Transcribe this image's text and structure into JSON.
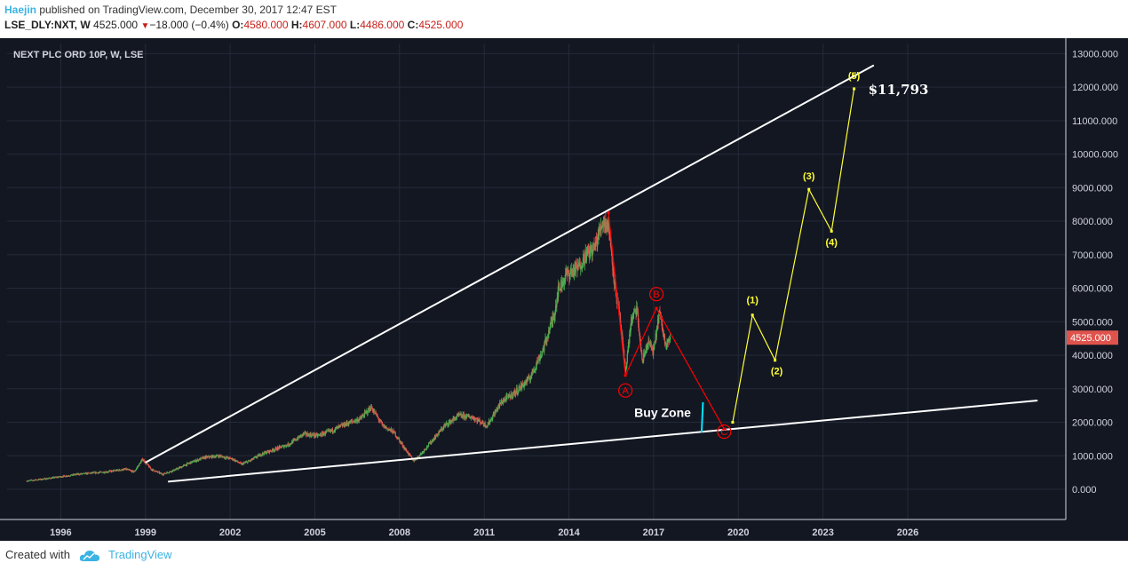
{
  "header": {
    "author": "Haejin",
    "published": "published on TradingView.com, December 30, 2017 12:47 EST",
    "symbol": "LSE_DLY:NXT, W",
    "last": "4525.000",
    "change": "−18.000 (−0.4%)",
    "o_label": "O:",
    "o_value": "4580.000",
    "h_label": "H:",
    "h_value": "4607.000",
    "l_label": "L:",
    "l_value": "4486.000",
    "c_label": "C:",
    "c_value": "4525.000"
  },
  "footer": {
    "created_with": "Created with",
    "brand": "TradingView"
  },
  "colors": {
    "background": "#131722",
    "grid": "#252a3a",
    "candle_up": "#4caf50",
    "candle_down": "#e0534d",
    "trendline": "#ffffff",
    "corrective": "#ff0000",
    "impulse": "#ffff33",
    "buy_marker": "#00e5ff",
    "price_tag": "#e0534d"
  },
  "chart_data": {
    "type": "line",
    "title": "NEXT PLC ORD 10P, W, LSE",
    "xlabel": "",
    "ylabel": "",
    "x_ticks": [
      "1996",
      "1999",
      "2002",
      "2005",
      "2008",
      "2011",
      "2014",
      "2017",
      "2020",
      "2023",
      "2026"
    ],
    "y_ticks": [
      "0.000",
      "1000.000",
      "2000.000",
      "3000.000",
      "4000.000",
      "5000.000",
      "6000.000",
      "7000.000",
      "8000.000",
      "9000.000",
      "10000.000",
      "11000.000",
      "12000.000",
      "13000.000"
    ],
    "ylim": [
      -900,
      13300
    ],
    "xlim": [
      1994.5,
      2032.0
    ],
    "grid": true,
    "current_price_label": "4525.000",
    "series": [
      {
        "kind": "price",
        "x": [
          1995.2,
          1996.0,
          1997.0,
          1998.0,
          1998.7,
          1999.0,
          1999.3,
          1999.6,
          2000.0,
          2000.5,
          2001.0,
          2001.5,
          2002.0,
          2002.5,
          2002.8,
          2003.1,
          2003.5,
          2004.0,
          2004.5,
          2005.0,
          2005.5,
          2006.0,
          2006.5,
          2007.0,
          2007.4,
          2007.8,
          2008.2,
          2008.6,
          2008.9,
          2009.2,
          2009.6,
          2010.0,
          2010.5,
          2011.0,
          2011.5,
          2012.0,
          2012.5,
          2013.0,
          2013.5,
          2013.9,
          2014.0,
          2014.3,
          2014.7,
          2015.0,
          2015.3,
          2015.6,
          2015.8,
          2016.0,
          2016.2,
          2016.4,
          2016.6,
          2016.8,
          2017.0,
          2017.2,
          2017.4,
          2017.6,
          2017.8,
          2018.0
        ],
        "y": [
          250,
          330,
          450,
          520,
          600,
          520,
          900,
          600,
          450,
          600,
          800,
          950,
          1000,
          900,
          750,
          850,
          1050,
          1200,
          1350,
          1650,
          1600,
          1750,
          1950,
          2100,
          2450,
          1900,
          1700,
          1200,
          850,
          1100,
          1500,
          1900,
          2200,
          2150,
          1900,
          2600,
          2900,
          3300,
          4200,
          5300,
          5900,
          6400,
          6600,
          7000,
          7200,
          8000,
          7900,
          6300,
          5100,
          3500,
          5000,
          5400,
          3800,
          4400,
          4100,
          5300,
          4400,
          4500
        ]
      },
      {
        "kind": "corrective",
        "x": [
          2015.8,
          2016.4,
          2017.5,
          2019.9
        ],
        "y": [
          8250,
          3400,
          5400,
          1800
        ],
        "labels": [
          "",
          "A",
          "B",
          "C"
        ]
      },
      {
        "kind": "impulse",
        "x": [
          2020.2,
          2020.9,
          2021.7,
          2022.9,
          2023.7,
          2024.5
        ],
        "y": [
          2000,
          5200,
          3850,
          8950,
          7700,
          11950
        ],
        "labels": [
          "",
          "(1)",
          "(2)",
          "(3)",
          "(4)",
          "(5)"
        ]
      },
      {
        "kind": "upper_trendline",
        "x": [
          1999.4,
          2025.2
        ],
        "y": [
          800,
          12650
        ]
      },
      {
        "kind": "lower_trendline",
        "x": [
          2000.2,
          2031.0
        ],
        "y": [
          230,
          2650
        ]
      }
    ],
    "annotations": {
      "target": "$11,793",
      "buy_zone": "Buy Zone"
    }
  }
}
